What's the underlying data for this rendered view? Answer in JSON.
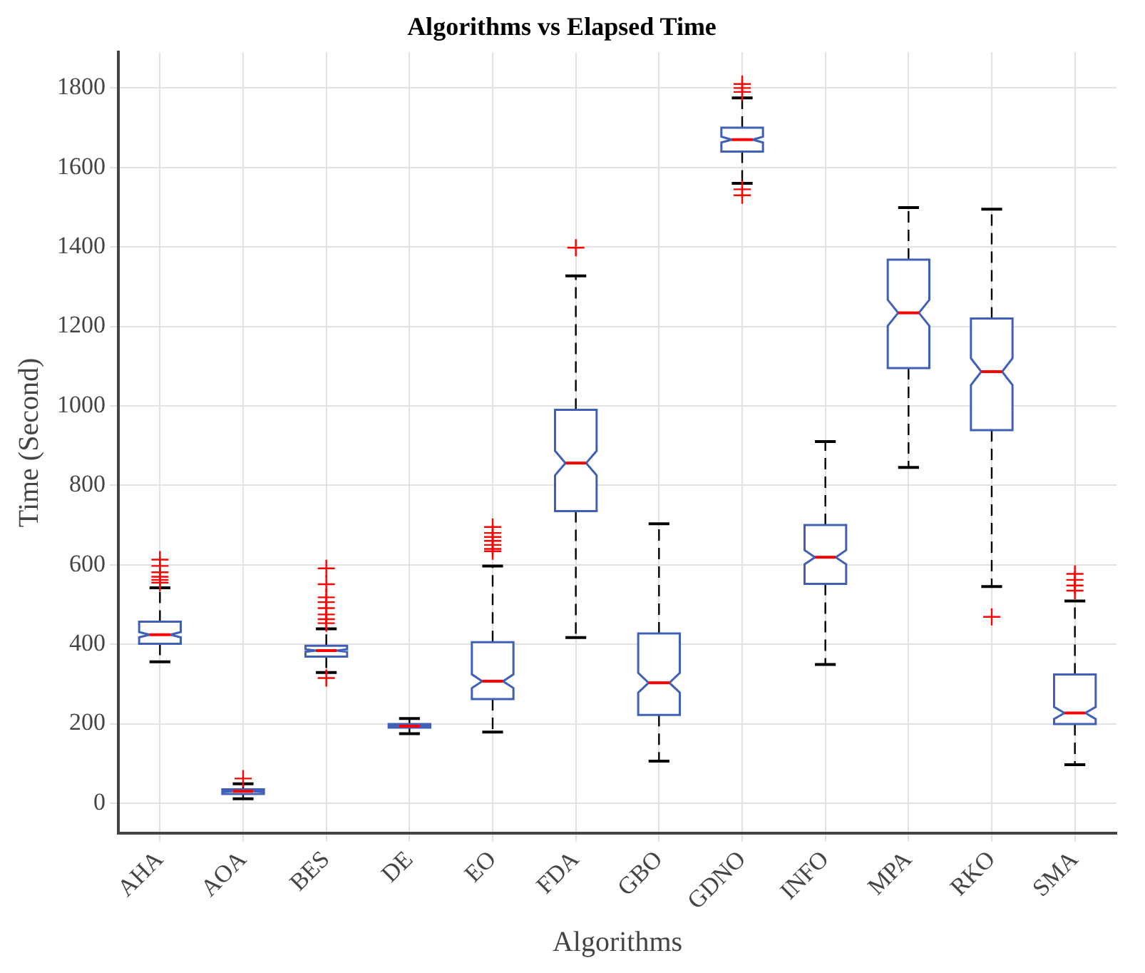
{
  "chart_data": {
    "type": "box",
    "title": "Algorithms vs Elapsed Time",
    "xlabel": "Algorithms",
    "ylabel": "Time (Second)",
    "categories": [
      "AHA",
      "AOA",
      "BES",
      "DE",
      "EO",
      "FDA",
      "GBO",
      "GDNO",
      "INFO",
      "MPA",
      "RKO",
      "SMA"
    ],
    "boxes": [
      {
        "low": 356,
        "q1": 401,
        "median": 424,
        "q3": 457,
        "high": 542,
        "outliers": [
          555,
          562,
          570,
          581,
          597,
          613
        ]
      },
      {
        "low": 11,
        "q1": 23,
        "median": 30,
        "q3": 35,
        "high": 49,
        "outliers": [
          62
        ]
      },
      {
        "low": 329,
        "q1": 369,
        "median": 384,
        "q3": 396,
        "high": 439,
        "outliers": [
          315,
          453,
          463,
          475,
          491,
          506,
          518,
          551,
          591
        ]
      },
      {
        "low": 175,
        "q1": 190,
        "median": 194,
        "q3": 199,
        "high": 213
      },
      {
        "low": 179,
        "q1": 262,
        "median": 307,
        "q3": 405,
        "high": 597,
        "outliers": [
          634,
          640,
          650,
          660,
          670,
          680,
          695
        ]
      },
      {
        "low": 417,
        "q1": 735,
        "median": 856,
        "q3": 990,
        "high": 1327,
        "outliers": [
          1398
        ]
      },
      {
        "low": 106,
        "q1": 222,
        "median": 303,
        "q3": 427,
        "high": 703
      },
      {
        "low": 1560,
        "q1": 1640,
        "median": 1670,
        "q3": 1700,
        "high": 1775,
        "outliers": [
          1530,
          1545,
          1790,
          1800,
          1810
        ]
      },
      {
        "low": 349,
        "q1": 552,
        "median": 619,
        "q3": 700,
        "high": 910
      },
      {
        "low": 845,
        "q1": 1095,
        "median": 1234,
        "q3": 1368,
        "high": 1499
      },
      {
        "low": 545,
        "q1": 939,
        "median": 1086,
        "q3": 1220,
        "high": 1495,
        "outliers": [
          469
        ]
      },
      {
        "low": 97,
        "q1": 199,
        "median": 227,
        "q3": 324,
        "high": 509,
        "outliers": [
          535,
          548,
          562,
          577
        ]
      }
    ],
    "ylim": [
      -75,
      1890
    ],
    "yticks": [
      0,
      200,
      400,
      600,
      800,
      1000,
      1200,
      1400,
      1600,
      1800
    ],
    "grid": true
  }
}
